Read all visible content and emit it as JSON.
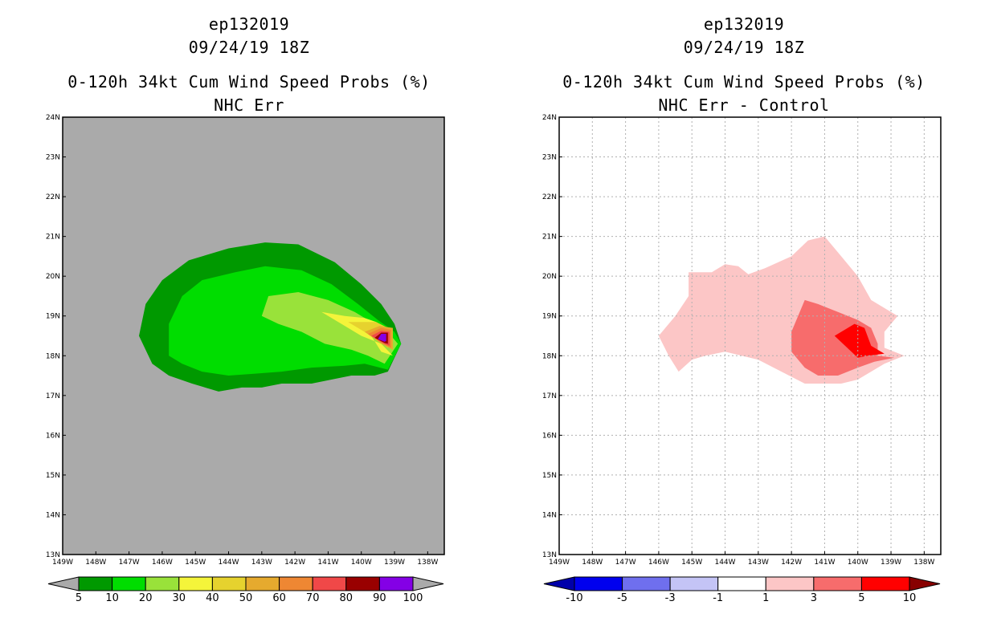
{
  "panels": [
    {
      "id": "left",
      "storm": "ep132019",
      "datetime": "09/24/19 18Z",
      "title": "0-120h 34kt Cum Wind Speed Probs (%)",
      "subtitle": "NHC Err"
    },
    {
      "id": "right",
      "storm": "ep132019",
      "datetime": "09/24/19 18Z",
      "title": "0-120h 34kt Cum Wind Speed Probs (%)",
      "subtitle": "NHC Err - Control"
    }
  ],
  "colors": {
    "land_gray": "#aaaaaa",
    "prob": [
      "#009900",
      "#00dd00",
      "#99e23a",
      "#f4f43a",
      "#e6d22e",
      "#e6aa2e",
      "#ee8733",
      "#f04848",
      "#990000",
      "#8400e6"
    ],
    "diff_neg": [
      "#0000aa",
      "#0000ee",
      "#6f6fee",
      "#c4c4f6",
      "#ffffff"
    ],
    "diff_pos": [
      "#fcc6c6",
      "#f76c6c",
      "#ff0000",
      "#880000"
    ]
  },
  "chart_data": [
    {
      "type": "contour",
      "panel": "left",
      "title": "0-120h 34kt Cum Wind Speed Probs (%)",
      "subtitle": "NHC Err",
      "xlim": [
        -149,
        -137.5
      ],
      "ylim": [
        13,
        24
      ],
      "x_ticks": [
        "149W",
        "148W",
        "147W",
        "146W",
        "145W",
        "144W",
        "143W",
        "142W",
        "141W",
        "140W",
        "139W",
        "138W"
      ],
      "y_ticks": [
        "13N",
        "14N",
        "15N",
        "16N",
        "17N",
        "18N",
        "19N",
        "20N",
        "21N",
        "22N",
        "23N",
        "24N"
      ],
      "grid": false,
      "colorbar_levels": [
        "5",
        "10",
        "20",
        "30",
        "40",
        "50",
        "60",
        "70",
        "80",
        "90",
        "100"
      ],
      "contours": [
        {
          "level": 5,
          "polygon": [
            [
              -146.7,
              18.5
            ],
            [
              -146.5,
              19.3
            ],
            [
              -146.0,
              19.9
            ],
            [
              -145.2,
              20.4
            ],
            [
              -144.0,
              20.7
            ],
            [
              -142.9,
              20.85
            ],
            [
              -141.9,
              20.8
            ],
            [
              -140.8,
              20.35
            ],
            [
              -140.0,
              19.8
            ],
            [
              -139.4,
              19.3
            ],
            [
              -139.0,
              18.8
            ],
            [
              -138.8,
              18.3
            ],
            [
              -139.2,
              17.6
            ],
            [
              -139.6,
              17.5
            ],
            [
              -140.3,
              17.5
            ],
            [
              -141.5,
              17.3
            ],
            [
              -142.4,
              17.3
            ],
            [
              -143.0,
              17.2
            ],
            [
              -143.6,
              17.2
            ],
            [
              -144.3,
              17.1
            ],
            [
              -145.1,
              17.3
            ],
            [
              -145.8,
              17.5
            ],
            [
              -146.3,
              17.8
            ]
          ]
        },
        {
          "level": 10,
          "polygon": [
            [
              -145.8,
              18.0
            ],
            [
              -145.8,
              18.8
            ],
            [
              -145.4,
              19.5
            ],
            [
              -144.8,
              19.9
            ],
            [
              -143.8,
              20.1
            ],
            [
              -142.9,
              20.25
            ],
            [
              -141.8,
              20.15
            ],
            [
              -140.9,
              19.8
            ],
            [
              -140.1,
              19.3
            ],
            [
              -139.5,
              18.9
            ],
            [
              -139.0,
              18.6
            ],
            [
              -138.8,
              18.3
            ],
            [
              -139.2,
              17.65
            ],
            [
              -139.9,
              17.8
            ],
            [
              -140.5,
              17.75
            ],
            [
              -141.5,
              17.7
            ],
            [
              -142.4,
              17.6
            ],
            [
              -143.2,
              17.55
            ],
            [
              -144.0,
              17.5
            ],
            [
              -144.8,
              17.6
            ],
            [
              -145.4,
              17.8
            ]
          ]
        },
        {
          "level": 20,
          "polygon": [
            [
              -143.0,
              19.0
            ],
            [
              -142.8,
              19.5
            ],
            [
              -141.9,
              19.6
            ],
            [
              -141.0,
              19.4
            ],
            [
              -140.2,
              19.1
            ],
            [
              -139.6,
              18.8
            ],
            [
              -139.1,
              18.5
            ],
            [
              -138.9,
              18.3
            ],
            [
              -139.3,
              17.8
            ],
            [
              -139.8,
              18.0
            ],
            [
              -140.3,
              18.15
            ],
            [
              -141.1,
              18.3
            ],
            [
              -141.8,
              18.6
            ],
            [
              -142.5,
              18.8
            ]
          ]
        },
        {
          "level": 30,
          "polygon": [
            [
              -141.2,
              19.1
            ],
            [
              -140.6,
              18.8
            ],
            [
              -140.0,
              18.5
            ],
            [
              -139.4,
              18.3
            ],
            [
              -139.05,
              18.0
            ],
            [
              -139.4,
              18.1
            ],
            [
              -139.7,
              18.5
            ],
            [
              -139.55,
              18.85
            ],
            [
              -139.9,
              18.95
            ],
            [
              -140.5,
              19.0
            ]
          ]
        },
        {
          "level": 40,
          "polygon": [
            [
              -140.4,
              18.85
            ],
            [
              -139.7,
              18.5
            ],
            [
              -139.2,
              18.2
            ],
            [
              -139.2,
              18.7
            ],
            [
              -139.55,
              18.85
            ]
          ]
        },
        {
          "level": 50,
          "polygon": [
            [
              -139.9,
              18.6
            ],
            [
              -139.4,
              18.3
            ],
            [
              -139.05,
              18.15
            ],
            [
              -139.05,
              18.7
            ],
            [
              -139.45,
              18.75
            ]
          ]
        },
        {
          "level": 60,
          "polygon": [
            [
              -139.8,
              18.55
            ],
            [
              -139.35,
              18.3
            ],
            [
              -139.1,
              18.2
            ],
            [
              -139.1,
              18.65
            ],
            [
              -139.4,
              18.7
            ]
          ]
        },
        {
          "level": 70,
          "polygon": [
            [
              -139.7,
              18.5
            ],
            [
              -139.3,
              18.3
            ],
            [
              -139.15,
              18.25
            ],
            [
              -139.15,
              18.6
            ],
            [
              -139.4,
              18.63
            ]
          ]
        },
        {
          "level": 80,
          "polygon": [
            [
              -139.6,
              18.45
            ],
            [
              -139.3,
              18.32
            ],
            [
              -139.2,
              18.3
            ],
            [
              -139.2,
              18.58
            ],
            [
              -139.4,
              18.58
            ]
          ]
        },
        {
          "level": 90,
          "polygon": [
            [
              -139.5,
              18.42
            ],
            [
              -139.3,
              18.35
            ],
            [
              -139.25,
              18.37
            ],
            [
              -139.25,
              18.55
            ],
            [
              -139.4,
              18.55
            ]
          ]
        }
      ]
    },
    {
      "type": "contour",
      "panel": "right",
      "title": "0-120h 34kt Cum Wind Speed Probs (%)",
      "subtitle": "NHC Err - Control",
      "xlim": [
        -149,
        -137.5
      ],
      "ylim": [
        13,
        24
      ],
      "x_ticks": [
        "149W",
        "148W",
        "147W",
        "146W",
        "145W",
        "144W",
        "143W",
        "142W",
        "141W",
        "140W",
        "139W",
        "138W"
      ],
      "y_ticks": [
        "13N",
        "14N",
        "15N",
        "16N",
        "17N",
        "18N",
        "19N",
        "20N",
        "21N",
        "22N",
        "23N",
        "24N"
      ],
      "grid": true,
      "colorbar_levels": [
        "-10",
        "-5",
        "-3",
        "-1",
        "1",
        "3",
        "5",
        "10"
      ],
      "contours": [
        {
          "level": 1,
          "polygon": [
            [
              -146.0,
              18.5
            ],
            [
              -145.5,
              19.0
            ],
            [
              -145.1,
              19.5
            ],
            [
              -145.1,
              20.1
            ],
            [
              -144.4,
              20.1
            ],
            [
              -144.0,
              20.3
            ],
            [
              -143.6,
              20.25
            ],
            [
              -143.3,
              20.05
            ],
            [
              -142.8,
              20.2
            ],
            [
              -142.0,
              20.5
            ],
            [
              -141.5,
              20.9
            ],
            [
              -141.0,
              21.0
            ],
            [
              -140.5,
              20.5
            ],
            [
              -140.0,
              20.0
            ],
            [
              -139.6,
              19.4
            ],
            [
              -138.8,
              19.0
            ],
            [
              -139.0,
              18.8
            ],
            [
              -139.2,
              18.6
            ],
            [
              -139.2,
              18.2
            ],
            [
              -138.6,
              18.0
            ],
            [
              -139.2,
              17.8
            ],
            [
              -140.0,
              17.4
            ],
            [
              -140.5,
              17.3
            ],
            [
              -141.0,
              17.3
            ],
            [
              -141.6,
              17.3
            ],
            [
              -142.3,
              17.6
            ],
            [
              -143.0,
              17.9
            ],
            [
              -144.0,
              18.1
            ],
            [
              -144.6,
              18.0
            ],
            [
              -145.0,
              17.9
            ],
            [
              -145.4,
              17.6
            ],
            [
              -145.7,
              18.0
            ]
          ]
        },
        {
          "level": 3,
          "polygon": [
            [
              -142.0,
              18.6
            ],
            [
              -141.6,
              19.4
            ],
            [
              -141.2,
              19.3
            ],
            [
              -140.6,
              19.1
            ],
            [
              -140.0,
              18.9
            ],
            [
              -139.6,
              18.7
            ],
            [
              -139.4,
              18.3
            ],
            [
              -139.4,
              18.0
            ],
            [
              -138.9,
              17.95
            ],
            [
              -139.5,
              17.85
            ],
            [
              -140.0,
              17.7
            ],
            [
              -140.6,
              17.5
            ],
            [
              -141.2,
              17.5
            ],
            [
              -141.6,
              17.7
            ],
            [
              -142.0,
              18.1
            ]
          ]
        },
        {
          "level": 5,
          "polygon": [
            [
              -140.7,
              18.5
            ],
            [
              -140.1,
              18.8
            ],
            [
              -139.8,
              18.7
            ],
            [
              -139.6,
              18.25
            ],
            [
              -139.2,
              18.05
            ],
            [
              -139.7,
              18.0
            ],
            [
              -140.0,
              17.95
            ]
          ]
        }
      ]
    }
  ]
}
